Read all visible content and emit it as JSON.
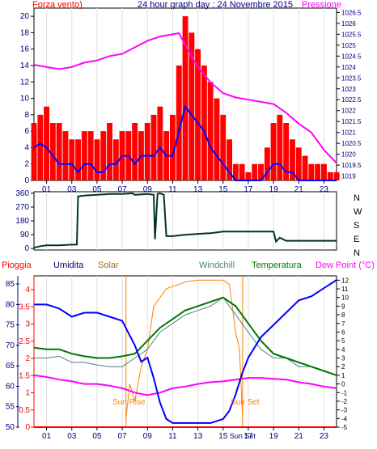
{
  "title": "24 hour graph day : 24 Novembre 2015",
  "colors": {
    "wind": "#ff0000",
    "pressure": "#ff00ff",
    "windLow": "#0000ff",
    "direction": "#003322",
    "rain": "#ff0000",
    "humidity": "#0000cc",
    "solar": "#ff8000",
    "windchill": "#4f7f7f",
    "temperature": "#007700",
    "dewpoint": "#ff00ff",
    "sun": "#ff8000",
    "axis": "#000000",
    "axisBlue": "#000080"
  },
  "hours": [
    "01",
    "03",
    "05",
    "07",
    "09",
    "11",
    "13",
    "15",
    "17",
    "19",
    "21",
    "23"
  ],
  "hourPositions": [
    1,
    3,
    5,
    7,
    9,
    11,
    13,
    15,
    17,
    19,
    21,
    23
  ],
  "top": {
    "leftLabel": "Forza vento)",
    "rightLabel": "Pressione",
    "leftTicks": [
      "0",
      "2",
      "4",
      "6",
      "8",
      "10",
      "12",
      "14",
      "16",
      "18",
      "20"
    ],
    "leftTickValues": [
      0,
      2,
      4,
      6,
      8,
      10,
      12,
      14,
      16,
      18,
      20
    ],
    "rightTicks": [
      "1019",
      "1019.5",
      "1020",
      "1020.5",
      "1021",
      "1021.5",
      "1022",
      "1022.5",
      "1023",
      "1023.5",
      "1024",
      "1024.5",
      "1025",
      "1025.5",
      "1026",
      "1026.5"
    ],
    "rightTickValues": [
      1019,
      1019.5,
      1020,
      1020.5,
      1021,
      1021.5,
      1022,
      1022.5,
      1023,
      1023.5,
      1024,
      1024.5,
      1025,
      1025.5,
      1026,
      1026.5
    ]
  },
  "mid": {
    "ticks": [
      "0",
      "90",
      "180",
      "270",
      "360"
    ],
    "tickValues": [
      0,
      90,
      180,
      270,
      360
    ],
    "compass": [
      "N",
      "W",
      "S",
      "E",
      "N"
    ]
  },
  "bottom": {
    "legend": {
      "rain": "Pioggia",
      "humidity": "Umidita",
      "solar": "Solar",
      "windchill": "Windchill",
      "temperature": "Temperatura",
      "dewpoint": "Dew Point (°C)"
    },
    "humTicks": [
      "50",
      "55",
      "60",
      "65",
      "70",
      "75",
      "80",
      "85"
    ],
    "humTickValues": [
      50,
      55,
      60,
      65,
      70,
      75,
      80,
      85
    ],
    "rainTicks": [
      "0",
      "0.5",
      "1",
      "1.5",
      "2",
      "2.5",
      "3",
      "3.5",
      "4"
    ],
    "rainTickValues": [
      0,
      0.5,
      1,
      1.5,
      2,
      2.5,
      3,
      3.5,
      4
    ],
    "tempTicks": [
      "-5",
      "-4",
      "-3",
      "-2",
      "-1",
      "0",
      "1",
      "2",
      "3",
      "4",
      "5",
      "6",
      "7",
      "8",
      "9",
      "10",
      "11",
      "12"
    ],
    "tempTickValues": [
      -5,
      -4,
      -3,
      -2,
      -1,
      0,
      1,
      2,
      3,
      4,
      5,
      6,
      7,
      8,
      9,
      10,
      11,
      12
    ],
    "sunRise": "Sun Rise",
    "sunSet": "Sun Set",
    "sunSetTick": "Sun Set",
    "sunRiseHour": 7.3,
    "sunSetHour": 16.55,
    "hours": [
      "01",
      "03",
      "05",
      "07",
      "09",
      "11",
      "13",
      "15",
      "17",
      "19",
      "21",
      "23"
    ]
  },
  "chart_data": [
    {
      "type": "line",
      "title": "24 hour graph day : 24 Novembre 2015",
      "xlabel": "",
      "ylabel": "Forza vento)",
      "y2label": "Pressione",
      "xlim": [
        0,
        24
      ],
      "ylim": [
        0,
        21
      ],
      "y2lim": [
        1018.8,
        1026.7
      ],
      "series": [
        {
          "name": "Forza vento)",
          "axis": "left",
          "style": "bar",
          "x": [
            0,
            0.5,
            1,
            1.5,
            2,
            2.5,
            3,
            3.5,
            4,
            4.5,
            5,
            5.5,
            6,
            6.5,
            7,
            7.5,
            8,
            8.5,
            9,
            9.5,
            10,
            10.5,
            11,
            11.5,
            12,
            12.5,
            13,
            13.5,
            14,
            14.5,
            15,
            15.5,
            16,
            16.5,
            17,
            17.5,
            18,
            18.5,
            19,
            19.5,
            20,
            20.5,
            21,
            21.5,
            22,
            22.5,
            23,
            23.5,
            24
          ],
          "y": [
            7,
            8,
            9,
            7,
            7,
            6,
            5,
            5,
            6,
            6,
            5,
            6,
            7,
            5,
            6,
            6,
            7,
            6,
            7,
            8,
            9,
            6,
            8,
            14,
            20,
            18,
            16,
            14,
            12,
            10,
            8,
            5,
            2,
            2,
            1,
            2,
            2,
            4,
            7,
            8,
            7,
            5,
            4,
            3,
            2,
            2,
            2,
            1,
            1
          ]
        },
        {
          "name": "",
          "axis": "left",
          "style": "line",
          "x": [
            0,
            0.5,
            1,
            1.5,
            2,
            2.5,
            3,
            3.5,
            4,
            4.5,
            5,
            5.5,
            6,
            6.5,
            7,
            7.5,
            8,
            8.5,
            9,
            9.5,
            10,
            10.5,
            11,
            11.5,
            12,
            12.5,
            13,
            13.5,
            14,
            14.5,
            15,
            15.5,
            16,
            16.5,
            17,
            17.5,
            18,
            18.5,
            19,
            19.5,
            20,
            20.5,
            21,
            21.5,
            22,
            22.5,
            23,
            23.5,
            24
          ],
          "y": [
            4,
            4.5,
            4,
            3,
            2,
            2,
            2,
            1,
            2,
            2,
            1,
            1,
            2,
            2,
            3,
            3,
            2,
            3,
            3,
            3,
            4,
            3,
            3,
            6,
            9,
            8,
            7,
            6,
            4,
            3,
            2,
            1,
            0,
            0,
            0,
            0,
            0,
            1,
            2,
            2,
            1,
            1,
            0,
            0,
            0,
            0,
            0,
            0,
            0
          ]
        },
        {
          "name": "Pressione",
          "axis": "right",
          "x": [
            0,
            1,
            2,
            3,
            4,
            5,
            6,
            7,
            8,
            9,
            10,
            11,
            11.5,
            12,
            13,
            14,
            15,
            16,
            17,
            18,
            19,
            20,
            21,
            22,
            23,
            24
          ],
          "y": [
            1024.1,
            1024.0,
            1023.9,
            1024.0,
            1024.2,
            1024.3,
            1024.5,
            1024.6,
            1024.9,
            1025.2,
            1025.4,
            1025.5,
            1025.55,
            1025.0,
            1024.0,
            1023.3,
            1022.8,
            1022.6,
            1022.5,
            1022.4,
            1022.3,
            1021.9,
            1021.4,
            1021.0,
            1020.2,
            1019.6
          ]
        }
      ]
    },
    {
      "type": "line",
      "title": "",
      "xlabel": "",
      "ylabel": "",
      "xlim": [
        0,
        24
      ],
      "ylim": [
        -10,
        370
      ],
      "series": [
        {
          "name": "",
          "x": [
            0,
            0.5,
            1,
            2,
            3,
            3.4,
            3.5,
            4,
            5,
            6,
            7,
            7.8,
            8,
            9,
            9.5,
            9.6,
            9.8,
            10,
            10.3,
            10.5,
            11,
            12,
            13,
            14,
            15,
            16,
            17,
            18,
            19,
            19.2,
            19.5,
            20,
            21,
            22,
            23,
            24
          ],
          "y": [
            5,
            15,
            20,
            20,
            25,
            25,
            340,
            345,
            350,
            355,
            355,
            360,
            350,
            355,
            350,
            60,
            355,
            360,
            350,
            80,
            80,
            90,
            95,
            100,
            110,
            110,
            110,
            110,
            110,
            45,
            70,
            50,
            50,
            50,
            50,
            50
          ]
        }
      ]
    },
    {
      "type": "line",
      "title": "",
      "xlabel": "",
      "ylabel": "Umidita",
      "xlim": [
        0,
        24
      ],
      "ylim": [
        50,
        87
      ],
      "series": [
        {
          "name": "Umidita",
          "axis": "humidity",
          "x": [
            0,
            1,
            2,
            3,
            4,
            5,
            6,
            7,
            7.5,
            8,
            8.5,
            9,
            9.5,
            10,
            10.5,
            11,
            12,
            13,
            14,
            15,
            15.5,
            16,
            16.5,
            17,
            18,
            19,
            20,
            21,
            22,
            23,
            24
          ],
          "y": [
            80,
            80,
            79,
            77,
            78,
            78,
            77,
            76,
            73,
            70,
            66,
            67,
            62,
            56,
            52,
            51,
            51,
            51,
            51,
            52,
            54,
            58,
            63,
            67,
            72,
            75,
            78,
            81,
            82,
            84,
            86
          ]
        },
        {
          "name": "Pioggia",
          "axis": "rain",
          "x": [
            0,
            24
          ],
          "y": [
            0,
            0
          ]
        },
        {
          "name": "Solar",
          "axis": "temp",
          "x": [
            7.3,
            7.6,
            8,
            8.5,
            9,
            9.5,
            10,
            10.5,
            11,
            11.5,
            12,
            13,
            14,
            15,
            15.5,
            16,
            16.3,
            16.55
          ],
          "y": [
            -4,
            0,
            -2,
            2,
            4,
            9,
            10,
            11,
            11.3,
            11.5,
            11.8,
            12,
            12,
            12,
            11.5,
            6,
            4,
            -4
          ]
        },
        {
          "name": "Windchill",
          "axis": "temp",
          "x": [
            0,
            1,
            2,
            3,
            4,
            5,
            6,
            7,
            8,
            9,
            10,
            11,
            12,
            13,
            14,
            15,
            16,
            17,
            18,
            19,
            20,
            21,
            22,
            23,
            24
          ],
          "y": [
            3,
            3,
            3.2,
            2.5,
            2.5,
            2.2,
            2,
            2,
            3,
            4,
            6,
            7,
            8,
            8.5,
            9,
            10,
            8,
            6,
            4,
            3,
            3,
            2,
            2,
            1.5,
            1
          ]
        },
        {
          "name": "Temperatura",
          "axis": "temp",
          "x": [
            0,
            1,
            2,
            3,
            4,
            5,
            6,
            7,
            8,
            9,
            10,
            11,
            12,
            13,
            14,
            15,
            16,
            17,
            18,
            19,
            20,
            21,
            22,
            23,
            24
          ],
          "y": [
            4.2,
            4,
            4,
            3.5,
            3.2,
            3,
            3,
            3.2,
            3.5,
            5,
            6.5,
            7.5,
            8.5,
            9,
            9.5,
            10,
            9,
            7,
            5,
            3.5,
            3,
            2.5,
            2,
            1.5,
            1
          ]
        },
        {
          "name": "Dew Point (°C)",
          "axis": "temp",
          "x": [
            0,
            1,
            2,
            3,
            4,
            5,
            6,
            7,
            8,
            9,
            10,
            11,
            12,
            13,
            14,
            15,
            16,
            17,
            18,
            19,
            20,
            21,
            22,
            23,
            24
          ],
          "y": [
            1,
            0.8,
            0.5,
            0.3,
            0,
            0,
            -0.2,
            -0.5,
            -1,
            -1.3,
            -1,
            -0.5,
            -0.3,
            0,
            0.2,
            0.3,
            0.5,
            0.7,
            0.7,
            0.6,
            0.5,
            0.2,
            0,
            -0.3,
            -0.5
          ]
        }
      ]
    }
  ]
}
